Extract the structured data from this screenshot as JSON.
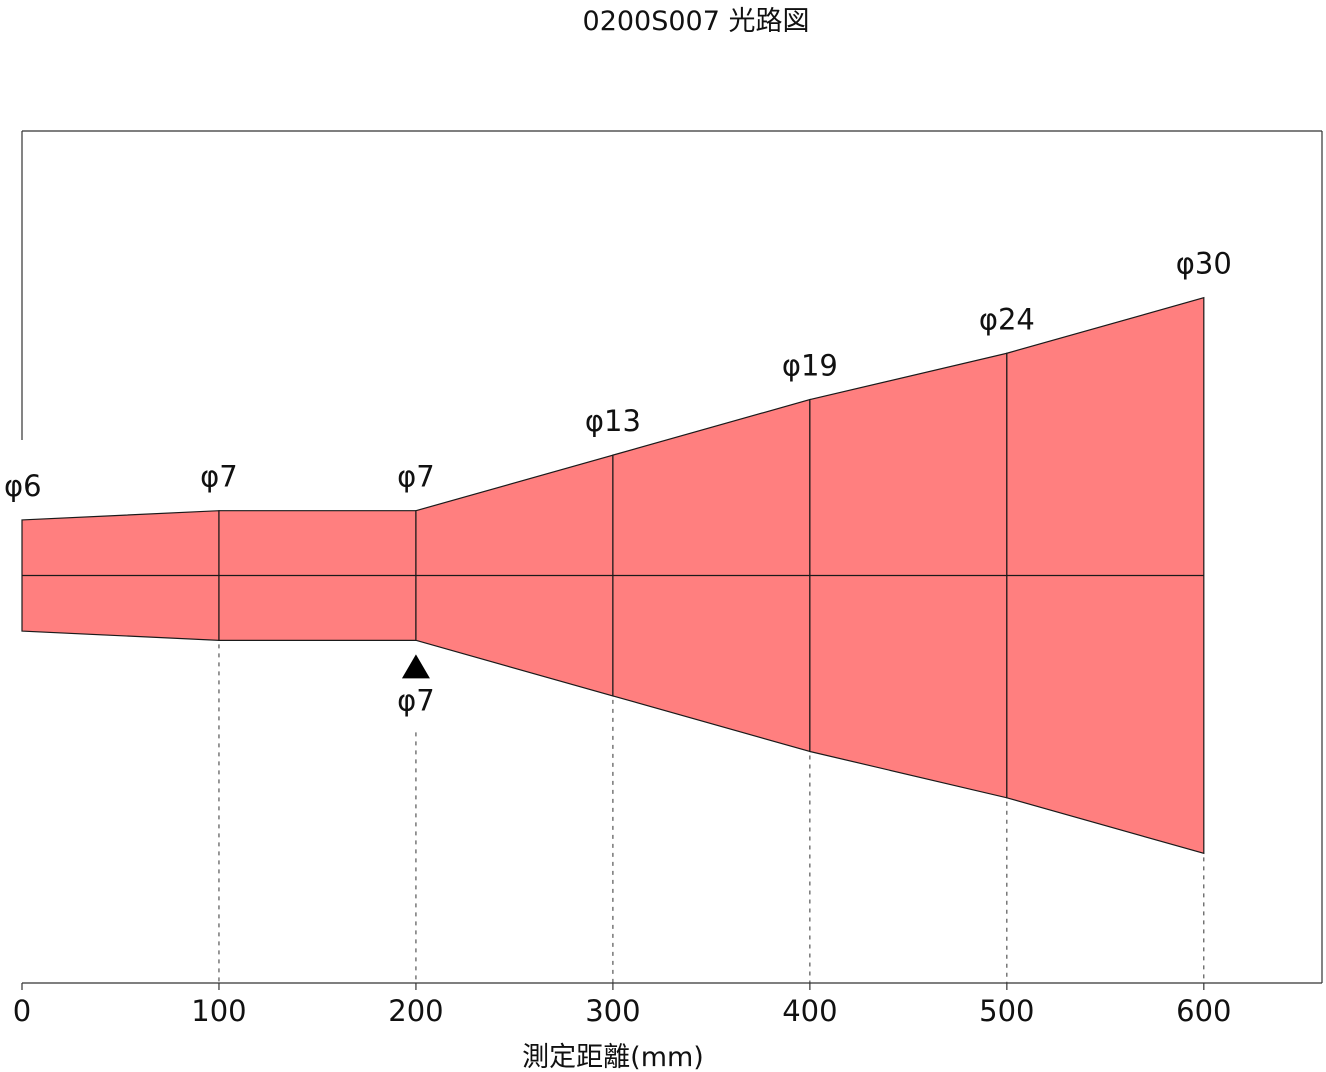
{
  "title": "0200S007 光路図",
  "chart_data": {
    "type": "area",
    "title": "0200S007 光路図",
    "xlabel": "測定距離(mm)",
    "ylabel": "",
    "xlim": [
      0,
      660
    ],
    "ylim": [
      -22,
      24
    ],
    "x": [
      0,
      100,
      200,
      300,
      400,
      500,
      600
    ],
    "series": [
      {
        "values": [
          6,
          7,
          7,
          13,
          19,
          24,
          30
        ],
        "diameter_labels": [
          "φ6",
          "φ7",
          "φ7",
          "φ13",
          "φ19",
          "φ24",
          "φ30"
        ]
      }
    ],
    "x_ticks": [
      "0",
      "100",
      "200",
      "300",
      "400",
      "500",
      "600"
    ],
    "focus": {
      "x": 200,
      "label": "φ7"
    },
    "grid": false
  },
  "colors": {
    "beam_fill": "#ff7f7f",
    "line": "#1a1a1a",
    "frame": "#333333"
  }
}
